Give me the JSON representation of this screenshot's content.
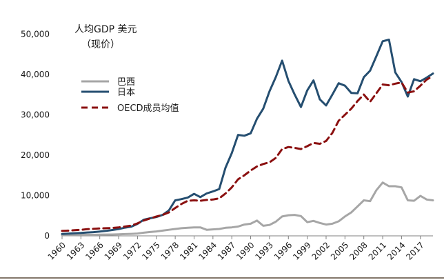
{
  "chart_data": {
    "type": "line",
    "title": "人均GDP 美元",
    "subtitle": "（现价）",
    "legend_position": "upper-left",
    "grid": false,
    "ylim": [
      0,
      55000
    ],
    "y_ticks": [
      0,
      10000,
      20000,
      30000,
      40000,
      50000
    ],
    "y_tick_labels": [
      "0",
      "10,000",
      "20,000",
      "30,000",
      "40,000",
      "50,000"
    ],
    "x_ticks": [
      1960,
      1963,
      1966,
      1969,
      1972,
      1975,
      1978,
      1981,
      1984,
      1987,
      1990,
      1993,
      1996,
      1999,
      2002,
      2005,
      2008,
      2011,
      2014,
      2017
    ],
    "x": [
      1960,
      1961,
      1962,
      1963,
      1964,
      1965,
      1966,
      1967,
      1968,
      1969,
      1970,
      1971,
      1972,
      1973,
      1974,
      1975,
      1976,
      1977,
      1978,
      1979,
      1980,
      1981,
      1982,
      1983,
      1984,
      1985,
      1986,
      1987,
      1988,
      1989,
      1990,
      1991,
      1992,
      1993,
      1994,
      1995,
      1996,
      1997,
      1998,
      1999,
      2000,
      2001,
      2002,
      2003,
      2004,
      2005,
      2006,
      2007,
      2008,
      2009,
      2010,
      2011,
      2012,
      2013,
      2014,
      2015,
      2016,
      2017,
      2018,
      2019
    ],
    "series": [
      {
        "name": "巴西",
        "color": "#a6a6a6",
        "dash": "solid",
        "values": [
          210,
          220,
          230,
          250,
          260,
          260,
          300,
          330,
          350,
          390,
          440,
          500,
          580,
          780,
          960,
          1100,
          1300,
          1500,
          1700,
          1900,
          2000,
          2100,
          2100,
          1500,
          1600,
          1700,
          2000,
          2100,
          2300,
          2800,
          3000,
          3800,
          2500,
          2700,
          3500,
          4800,
          5100,
          5200,
          4900,
          3400,
          3700,
          3200,
          2800,
          3000,
          3600,
          4800,
          5800,
          7300,
          8800,
          8600,
          11300,
          13200,
          12300,
          12300,
          12000,
          8800,
          8700,
          9900,
          9000,
          8800
        ]
      },
      {
        "name": "日本",
        "color": "#254e70",
        "dash": "solid",
        "values": [
          480,
          560,
          630,
          720,
          840,
          920,
          1060,
          1230,
          1450,
          1670,
          2040,
          2270,
          2970,
          3990,
          4350,
          4660,
          5200,
          6300,
          8800,
          9100,
          9500,
          10400,
          9600,
          10500,
          11000,
          11600,
          16900,
          20500,
          25000,
          24800,
          25400,
          29000,
          31500,
          35800,
          39300,
          43400,
          38400,
          35000,
          31900,
          36000,
          38500,
          33800,
          32300,
          35000,
          37800,
          37200,
          35400,
          35300,
          39300,
          40900,
          44500,
          48200,
          48600,
          40500,
          38100,
          34500,
          38800,
          38300,
          39200,
          40200
        ]
      },
      {
        "name": "OECD成员均值",
        "color": "#8b1010",
        "dash": "dashed",
        "values": [
          1250,
          1300,
          1400,
          1500,
          1650,
          1750,
          1850,
          1900,
          1950,
          2100,
          2300,
          2550,
          3100,
          3800,
          4300,
          4800,
          5200,
          5800,
          6900,
          7900,
          8700,
          8800,
          8700,
          8900,
          9000,
          9300,
          10500,
          12000,
          14000,
          15000,
          16200,
          17200,
          17800,
          18200,
          19300,
          21500,
          22000,
          21800,
          21500,
          22200,
          23000,
          22800,
          23500,
          25500,
          28500,
          30000,
          31500,
          33400,
          35000,
          33200,
          35300,
          37500,
          37300,
          37700,
          38000,
          35500,
          35800,
          37200,
          38700,
          39600
        ]
      }
    ]
  }
}
